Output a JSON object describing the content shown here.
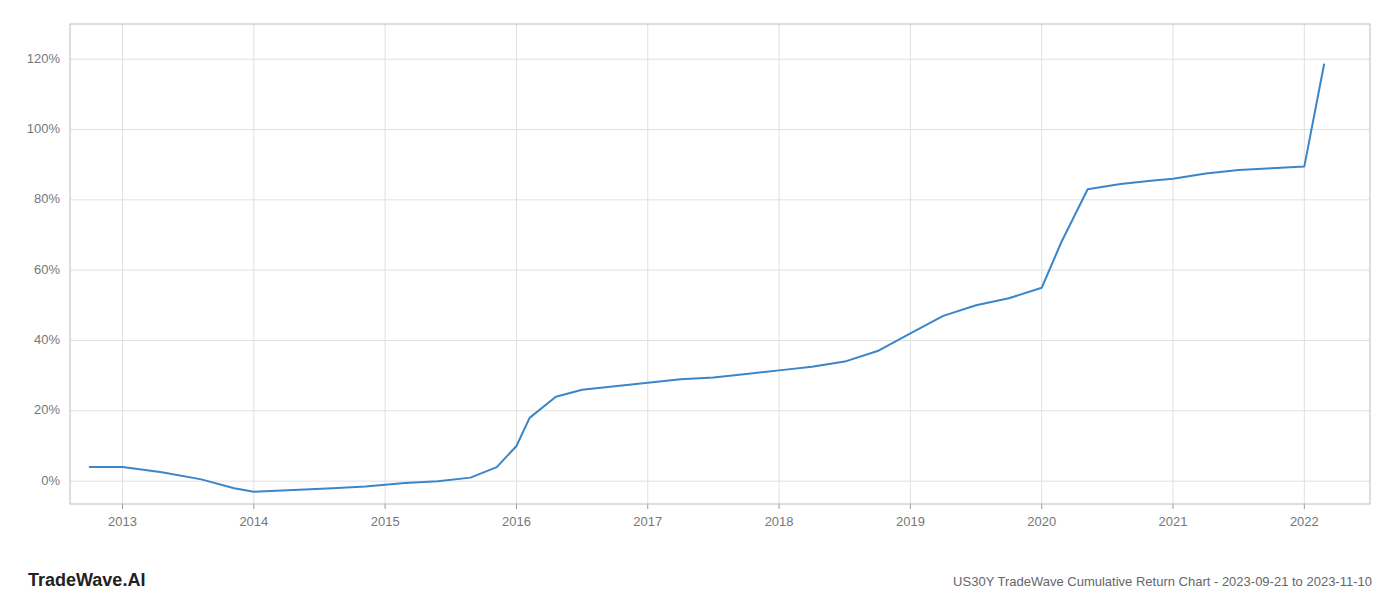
{
  "chart_data": {
    "type": "line",
    "title": "US30Y TradeWave Cumulative Return Chart - 2023-09-21 to 2023-11-10",
    "annotations": [
      "TradeWave.AI"
    ],
    "color": "#3a86c8",
    "grid": true,
    "x": [
      2012.75,
      2013.0,
      2013.3,
      2013.6,
      2013.85,
      2014.0,
      2014.3,
      2014.6,
      2014.85,
      2015.0,
      2015.15,
      2015.4,
      2015.65,
      2015.85,
      2016.0,
      2016.1,
      2016.3,
      2016.5,
      2016.75,
      2017.0,
      2017.25,
      2017.5,
      2017.75,
      2018.0,
      2018.25,
      2018.5,
      2018.75,
      2019.0,
      2019.25,
      2019.5,
      2019.75,
      2020.0,
      2020.15,
      2020.35,
      2020.6,
      2020.85,
      2021.0,
      2021.25,
      2021.5,
      2021.75,
      2022.0,
      2022.15
    ],
    "values": [
      0.04,
      0.04,
      0.025,
      0.005,
      -0.02,
      -0.03,
      -0.025,
      -0.02,
      -0.015,
      -0.01,
      -0.005,
      0.0,
      0.01,
      0.04,
      0.1,
      0.18,
      0.24,
      0.26,
      0.27,
      0.28,
      0.29,
      0.295,
      0.305,
      0.315,
      0.325,
      0.34,
      0.37,
      0.42,
      0.47,
      0.5,
      0.52,
      0.55,
      0.68,
      0.83,
      0.845,
      0.855,
      0.86,
      0.875,
      0.885,
      0.89,
      0.895,
      1.185
    ],
    "xlim": [
      2012.6,
      2022.5
    ],
    "ylim": [
      -0.065,
      1.3
    ],
    "xticks": [
      2013,
      2014,
      2015,
      2016,
      2017,
      2018,
      2019,
      2020,
      2021,
      2022
    ],
    "yticks": [
      {
        "value": 0.0,
        "label": "0%"
      },
      {
        "value": 0.2,
        "label": "20%"
      },
      {
        "value": 0.4,
        "label": "40%"
      },
      {
        "value": 0.6,
        "label": "60%"
      },
      {
        "value": 0.8,
        "label": "80%"
      },
      {
        "value": 1.0,
        "label": "100%"
      },
      {
        "value": 1.2,
        "label": "120%"
      }
    ]
  }
}
